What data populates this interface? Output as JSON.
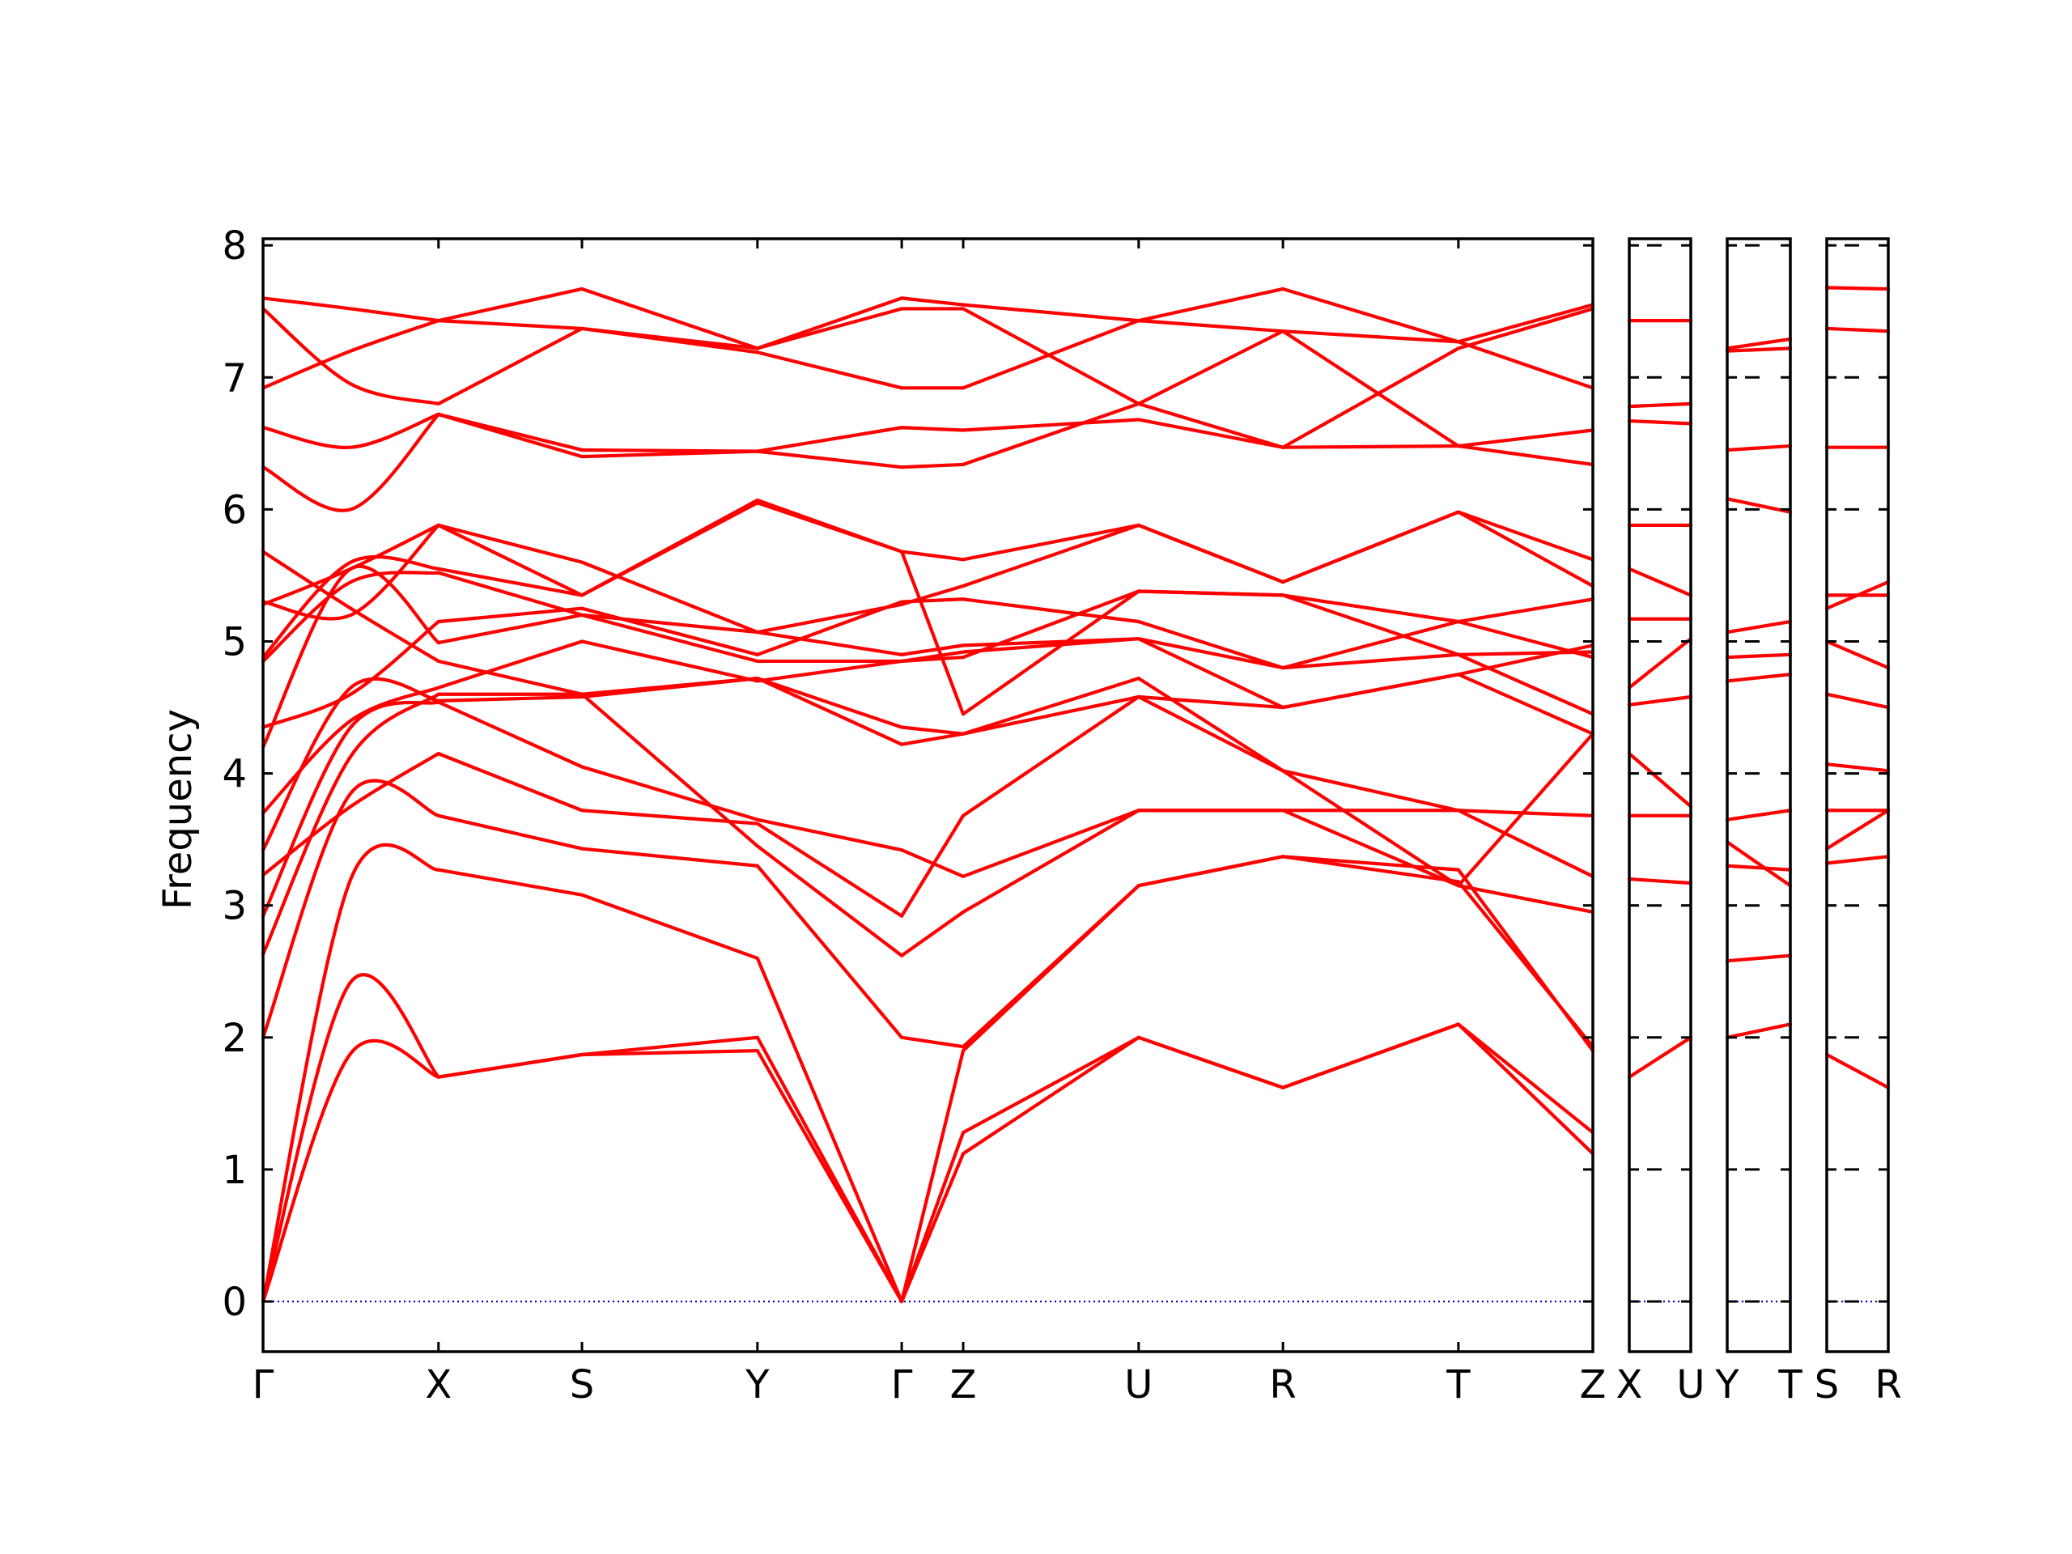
{
  "chart_data": {
    "type": "line",
    "title": "",
    "ylabel": "Frequency",
    "xlabel": "",
    "ylim": [
      -0.38,
      8.05
    ],
    "yticks": [
      "0",
      "1",
      "2",
      "3",
      "4",
      "5",
      "6",
      "7",
      "8"
    ],
    "grid": false,
    "colors": {
      "bands": "#ff0000",
      "zero": "#0000cc",
      "frame": "#000000"
    },
    "panels": [
      {
        "labels": [
          "Γ",
          "X",
          "S",
          "Y",
          "Γ",
          "Z",
          "U",
          "R",
          "T",
          "Z"
        ],
        "segments": [
          {
            "from": "Γ",
            "to": "X",
            "bands": [
              [
                0,
                1.88,
                1.7
              ],
              [
                0,
                2.42,
                1.7
              ],
              [
                0,
                3.2,
                3.27
              ],
              [
                2.0,
                3.85,
                3.68
              ],
              [
                2.63,
                4.13,
                4.6
              ],
              [
                2.92,
                4.35,
                4.54
              ],
              [
                3.23,
                3.75,
                4.15
              ],
              [
                3.42,
                4.65,
                4.55
              ],
              [
                3.7,
                4.4,
                4.65
              ],
              [
                4.2,
                5.55,
                4.99
              ],
              [
                4.35,
                4.6,
                5.15
              ],
              [
                4.85,
                5.45,
                5.52
              ],
              [
                4.88,
                5.6,
                5.55
              ],
              [
                5.3,
                5.2,
                5.88
              ],
              [
                5.28,
                5.55,
                5.88
              ],
              [
                5.68,
                5.25,
                4.85
              ],
              [
                6.32,
                6.0,
                6.72
              ],
              [
                6.62,
                6.47,
                6.72
              ],
              [
                6.92,
                7.2,
                7.43
              ],
              [
                7.52,
                6.95,
                6.8
              ],
              [
                7.6,
                7.52,
                7.43
              ]
            ]
          },
          {
            "from": "X",
            "to": "S",
            "bands": [
              [
                1.7,
                1.87
              ],
              [
                1.7,
                1.87
              ],
              [
                3.27,
                3.08
              ],
              [
                3.68,
                3.43
              ],
              [
                4.6,
                4.6
              ],
              [
                4.54,
                4.05
              ],
              [
                4.15,
                3.72
              ],
              [
                4.55,
                4.58
              ],
              [
                4.65,
                5.0
              ],
              [
                4.99,
                5.2
              ],
              [
                5.15,
                5.25
              ],
              [
                5.52,
                5.2
              ],
              [
                5.55,
                5.35
              ],
              [
                5.88,
                5.35
              ],
              [
                5.88,
                5.6
              ],
              [
                4.85,
                4.6
              ],
              [
                6.72,
                6.45
              ],
              [
                6.72,
                6.4
              ],
              [
                7.43,
                7.37
              ],
              [
                6.8,
                7.37
              ],
              [
                7.43,
                7.67
              ]
            ]
          },
          {
            "from": "S",
            "to": "Y",
            "bands": [
              [
                1.87,
                2.0
              ],
              [
                1.87,
                1.9
              ],
              [
                3.08,
                2.6
              ],
              [
                3.43,
                3.3
              ],
              [
                4.6,
                3.45
              ],
              [
                4.05,
                3.65
              ],
              [
                3.72,
                3.62
              ],
              [
                4.58,
                4.72
              ],
              [
                5.0,
                4.7
              ],
              [
                5.2,
                4.85
              ],
              [
                5.25,
                4.9
              ],
              [
                5.2,
                5.07
              ],
              [
                5.35,
                6.07
              ],
              [
                5.35,
                6.05
              ],
              [
                5.6,
                5.07
              ],
              [
                4.6,
                4.72
              ],
              [
                6.45,
                6.44
              ],
              [
                6.4,
                6.44
              ],
              [
                7.37,
                7.19
              ],
              [
                7.37,
                7.22
              ],
              [
                7.67,
                7.22
              ]
            ]
          },
          {
            "from": "Y",
            "to": "Γ",
            "bands": [
              [
                2.0,
                0
              ],
              [
                1.9,
                0
              ],
              [
                2.6,
                0
              ],
              [
                3.3,
                2.0
              ],
              [
                3.45,
                2.62
              ],
              [
                3.65,
                3.42
              ],
              [
                3.62,
                2.92
              ],
              [
                4.72,
                4.22
              ],
              [
                4.7,
                4.85
              ],
              [
                4.85,
                4.85
              ],
              [
                4.9,
                5.3
              ],
              [
                5.07,
                5.28
              ],
              [
                6.07,
                5.68
              ],
              [
                6.05,
                5.68
              ],
              [
                5.07,
                4.9
              ],
              [
                4.72,
                4.35
              ],
              [
                6.44,
                6.32
              ],
              [
                6.44,
                6.62
              ],
              [
                7.19,
                6.92
              ],
              [
                7.22,
                7.52
              ],
              [
                7.22,
                7.6
              ]
            ]
          },
          {
            "from": "Γ",
            "to": "Z",
            "bands": [
              [
                0,
                1.12
              ],
              [
                0,
                1.28
              ],
              [
                0,
                1.9
              ],
              [
                2.0,
                1.93
              ],
              [
                2.62,
                2.95
              ],
              [
                3.42,
                3.22
              ],
              [
                2.92,
                3.68
              ],
              [
                4.22,
                4.3
              ],
              [
                4.85,
                4.92
              ],
              [
                4.85,
                4.88
              ],
              [
                5.3,
                5.32
              ],
              [
                5.28,
                5.42
              ],
              [
                5.68,
                5.62
              ],
              [
                5.68,
                4.45
              ],
              [
                4.9,
                4.97
              ],
              [
                4.35,
                4.3
              ],
              [
                6.32,
                6.34
              ],
              [
                6.62,
                6.6
              ],
              [
                6.92,
                6.92
              ],
              [
                7.52,
                7.52
              ],
              [
                7.6,
                7.55
              ]
            ]
          },
          {
            "from": "Z",
            "to": "U",
            "bands": [
              [
                1.12,
                2.0
              ],
              [
                1.28,
                2.0
              ],
              [
                1.9,
                3.15
              ],
              [
                1.93,
                3.15
              ],
              [
                2.95,
                3.72
              ],
              [
                3.22,
                3.72
              ],
              [
                3.68,
                4.58
              ],
              [
                4.3,
                4.58
              ],
              [
                4.92,
                5.02
              ],
              [
                4.88,
                5.38
              ],
              [
                5.32,
                5.15
              ],
              [
                5.42,
                5.88
              ],
              [
                5.62,
                5.88
              ],
              [
                4.45,
                5.38
              ],
              [
                4.97,
                5.02
              ],
              [
                4.3,
                4.72
              ],
              [
                6.34,
                6.8
              ],
              [
                6.6,
                6.68
              ],
              [
                6.92,
                7.43
              ],
              [
                7.52,
                6.8
              ],
              [
                7.55,
                7.43
              ]
            ]
          },
          {
            "from": "U",
            "to": "R",
            "bands": [
              [
                2.0,
                1.62
              ],
              [
                2.0,
                1.62
              ],
              [
                3.15,
                3.37
              ],
              [
                3.15,
                3.37
              ],
              [
                3.72,
                3.72
              ],
              [
                3.72,
                3.72
              ],
              [
                4.58,
                4.02
              ],
              [
                4.58,
                4.5
              ],
              [
                5.02,
                4.8
              ],
              [
                5.38,
                5.35
              ],
              [
                5.15,
                4.8
              ],
              [
                5.88,
                5.45
              ],
              [
                5.88,
                5.45
              ],
              [
                5.38,
                5.35
              ],
              [
                5.02,
                4.5
              ],
              [
                4.72,
                4.02
              ],
              [
                6.8,
                7.35
              ],
              [
                6.68,
                6.47
              ],
              [
                7.43,
                7.67
              ],
              [
                6.8,
                6.47
              ],
              [
                7.43,
                7.35
              ]
            ]
          },
          {
            "from": "R",
            "to": "T",
            "bands": [
              [
                1.62,
                2.1
              ],
              [
                1.62,
                2.1
              ],
              [
                3.37,
                3.27
              ],
              [
                3.37,
                3.18
              ],
              [
                3.72,
                3.15
              ],
              [
                3.72,
                3.72
              ],
              [
                4.02,
                3.72
              ],
              [
                4.5,
                4.75
              ],
              [
                4.8,
                4.9
              ],
              [
                5.35,
                5.15
              ],
              [
                4.8,
                5.15
              ],
              [
                5.45,
                5.98
              ],
              [
                5.45,
                5.98
              ],
              [
                5.35,
                4.9
              ],
              [
                4.5,
                4.75
              ],
              [
                4.02,
                3.15
              ],
              [
                7.35,
                6.48
              ],
              [
                6.47,
                6.48
              ],
              [
                7.67,
                7.27
              ],
              [
                6.47,
                7.22
              ],
              [
                7.35,
                7.27
              ]
            ]
          },
          {
            "from": "T",
            "to": "Z",
            "bands": [
              [
                2.1,
                1.12
              ],
              [
                2.1,
                1.28
              ],
              [
                3.27,
                1.9
              ],
              [
                3.18,
                1.93
              ],
              [
                3.15,
                2.95
              ],
              [
                3.72,
                3.22
              ],
              [
                3.72,
                3.68
              ],
              [
                4.75,
                4.3
              ],
              [
                4.9,
                4.92
              ],
              [
                5.15,
                4.88
              ],
              [
                5.15,
                5.32
              ],
              [
                5.98,
                5.42
              ],
              [
                5.98,
                5.62
              ],
              [
                4.9,
                4.45
              ],
              [
                4.75,
                4.97
              ],
              [
                3.15,
                4.3
              ],
              [
                6.48,
                6.34
              ],
              [
                6.48,
                6.6
              ],
              [
                7.27,
                6.92
              ],
              [
                7.22,
                7.52
              ],
              [
                7.27,
                7.55
              ]
            ]
          }
        ]
      },
      {
        "labels": [
          "X",
          "U"
        ],
        "segments": [
          {
            "from": "X",
            "to": "U",
            "bands": [
              [
                1.7,
                2.0
              ],
              [
                3.2,
                3.17
              ],
              [
                3.68,
                3.68
              ],
              [
                4.15,
                3.75
              ],
              [
                4.52,
                4.58
              ],
              [
                4.65,
                5.02
              ],
              [
                5.17,
                5.17
              ],
              [
                5.55,
                5.35
              ],
              [
                5.88,
                5.88
              ],
              [
                6.67,
                6.65
              ],
              [
                6.78,
                6.8
              ],
              [
                7.43,
                7.43
              ]
            ]
          }
        ]
      },
      {
        "labels": [
          "Y",
          "T"
        ],
        "segments": [
          {
            "from": "Y",
            "to": "T",
            "bands": [
              [
                2.0,
                2.1
              ],
              [
                2.58,
                2.62
              ],
              [
                3.3,
                3.27
              ],
              [
                3.48,
                3.15
              ],
              [
                3.65,
                3.72
              ],
              [
                4.7,
                4.75
              ],
              [
                4.88,
                4.9
              ],
              [
                5.07,
                5.15
              ],
              [
                6.08,
                5.98
              ],
              [
                6.45,
                6.48
              ],
              [
                7.2,
                7.22
              ],
              [
                7.22,
                7.29
              ]
            ]
          }
        ]
      },
      {
        "labels": [
          "S",
          "R"
        ],
        "segments": [
          {
            "from": "S",
            "to": "R",
            "bands": [
              [
                1.87,
                1.62
              ],
              [
                3.32,
                3.37
              ],
              [
                3.43,
                3.72
              ],
              [
                3.72,
                3.72
              ],
              [
                4.07,
                4.02
              ],
              [
                4.6,
                4.5
              ],
              [
                5.0,
                4.8
              ],
              [
                5.25,
                5.45
              ],
              [
                5.35,
                5.35
              ],
              [
                6.47,
                6.47
              ],
              [
                7.37,
                7.35
              ],
              [
                7.68,
                7.67
              ]
            ]
          }
        ]
      }
    ]
  }
}
